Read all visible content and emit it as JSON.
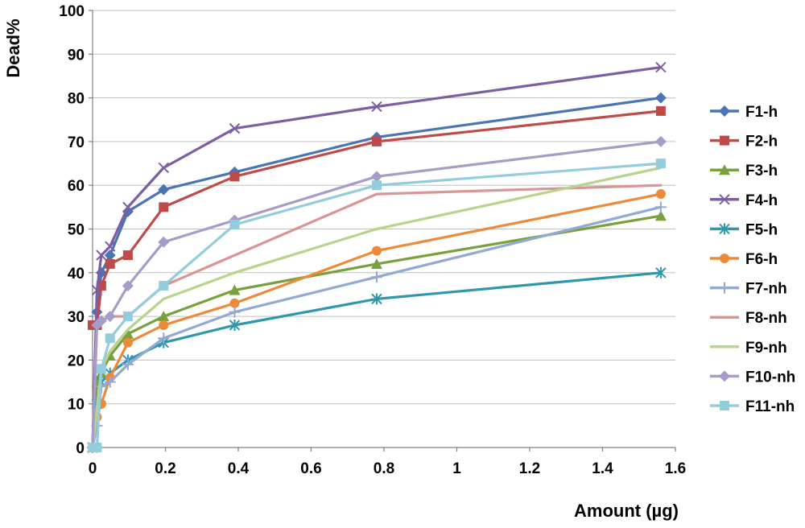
{
  "chart_data": {
    "type": "line",
    "xlabel": "Amount (µg)",
    "ylabel": "Dead%",
    "xlim": [
      0,
      1.6
    ],
    "ylim": [
      0,
      100
    ],
    "xticks": [
      "0",
      "0.2",
      "0.4",
      "0.6",
      "0.8",
      "1",
      "1.2",
      "1.4",
      "1.6"
    ],
    "yticks": [
      "0",
      "10",
      "20",
      "30",
      "40",
      "50",
      "60",
      "70",
      "80",
      "90",
      "100"
    ],
    "grid": "horizontal",
    "legend_position": "right",
    "x": [
      0,
      0.012,
      0.024,
      0.048,
      0.097,
      0.195,
      0.39,
      0.78,
      1.56
    ],
    "series": [
      {
        "name": "F1-h",
        "color": "#4a74b3",
        "marker": "diamond",
        "values": [
          0,
          31,
          40,
          44,
          54,
          59,
          63,
          71,
          80
        ]
      },
      {
        "name": "F2-h",
        "color": "#be4b48",
        "marker": "square",
        "values": [
          28,
          28,
          37,
          42,
          44,
          55,
          62,
          70,
          77
        ]
      },
      {
        "name": "F3-h",
        "color": "#78a03c",
        "marker": "triangle",
        "values": [
          0,
          15,
          17,
          21,
          26,
          30,
          36,
          42,
          53
        ]
      },
      {
        "name": "F4-h",
        "color": "#7d5ea2",
        "marker": "x",
        "values": [
          0,
          36,
          44,
          46,
          55,
          64,
          73,
          78,
          87
        ]
      },
      {
        "name": "F5-h",
        "color": "#2f97ad",
        "marker": "star",
        "values": [
          0,
          10,
          15,
          17,
          20,
          24,
          28,
          34,
          40
        ]
      },
      {
        "name": "F6-h",
        "color": "#ec8a3a",
        "marker": "circle",
        "values": [
          0,
          7,
          10,
          16,
          24,
          28,
          33,
          45,
          58
        ]
      },
      {
        "name": "F7-nh",
        "color": "#93a9d4",
        "marker": "plus",
        "values": [
          0,
          5,
          14,
          15,
          19,
          25,
          31,
          39,
          55
        ]
      },
      {
        "name": "F8-nh",
        "color": "#d99593",
        "marker": "none",
        "values": [
          0,
          28,
          29,
          30,
          30,
          37,
          44,
          58,
          60
        ]
      },
      {
        "name": "F9-nh",
        "color": "#b6d48a",
        "marker": "none",
        "values": [
          0,
          9,
          18,
          22,
          27,
          34,
          40,
          50,
          64
        ]
      },
      {
        "name": "F10-nh",
        "color": "#a89bc9",
        "marker": "diamond",
        "values": [
          0,
          28,
          29,
          30,
          37,
          47,
          52,
          62,
          70
        ]
      },
      {
        "name": "F11-nh",
        "color": "#93cddd",
        "marker": "square",
        "values": [
          0,
          0,
          18,
          25,
          30,
          37,
          51,
          60,
          65
        ]
      }
    ]
  }
}
